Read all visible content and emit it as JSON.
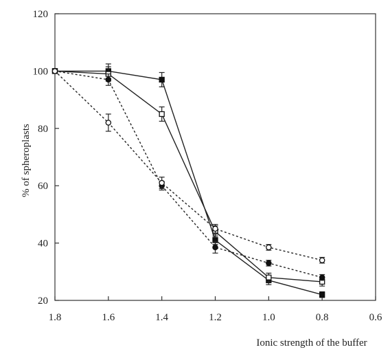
{
  "chart_data": {
    "type": "line",
    "title": "",
    "xlabel": "Ionic strength of the buffer",
    "ylabel": "% of spheroplasts",
    "xlim": [
      1.8,
      0.6
    ],
    "ylim": [
      20,
      120
    ],
    "x_reversed": true,
    "x_ticks": [
      "1.8",
      "1.6",
      "1.4",
      "1.2",
      "1.0",
      "0.8",
      "0.6"
    ],
    "y_ticks": [
      "20",
      "40",
      "60",
      "80",
      "100",
      "120"
    ],
    "grid": false,
    "legend": "none",
    "series": [
      {
        "marker": "filled-square",
        "line": "solid",
        "x": [
          1.8,
          1.6,
          1.4,
          1.2,
          1.0,
          0.8
        ],
        "values": [
          100,
          100,
          97,
          41,
          27,
          22
        ],
        "error": [
          0,
          2.5,
          2.5,
          1.5,
          1.5,
          1
        ]
      },
      {
        "marker": "open-square",
        "line": "solid",
        "x": [
          1.8,
          1.6,
          1.4,
          1.2,
          1.0,
          0.8
        ],
        "values": [
          100,
          99,
          85,
          44,
          28,
          26.5
        ],
        "error": [
          0,
          2.5,
          2.5,
          2,
          1.5,
          1.5
        ]
      },
      {
        "marker": "filled-circle",
        "line": "dotted",
        "x": [
          1.8,
          1.6,
          1.4,
          1.2,
          1.0,
          0.8
        ],
        "values": [
          100,
          97,
          60,
          38.5,
          33,
          28
        ],
        "error": [
          0,
          2,
          1.5,
          2,
          1,
          1
        ]
      },
      {
        "marker": "open-circle",
        "line": "dotted",
        "x": [
          1.8,
          1.6,
          1.4,
          1.2,
          1.0,
          0.8
        ],
        "values": [
          100,
          82,
          61,
          45,
          38.5,
          34
        ],
        "error": [
          0,
          3,
          2,
          1.5,
          1,
          1
        ]
      }
    ]
  }
}
